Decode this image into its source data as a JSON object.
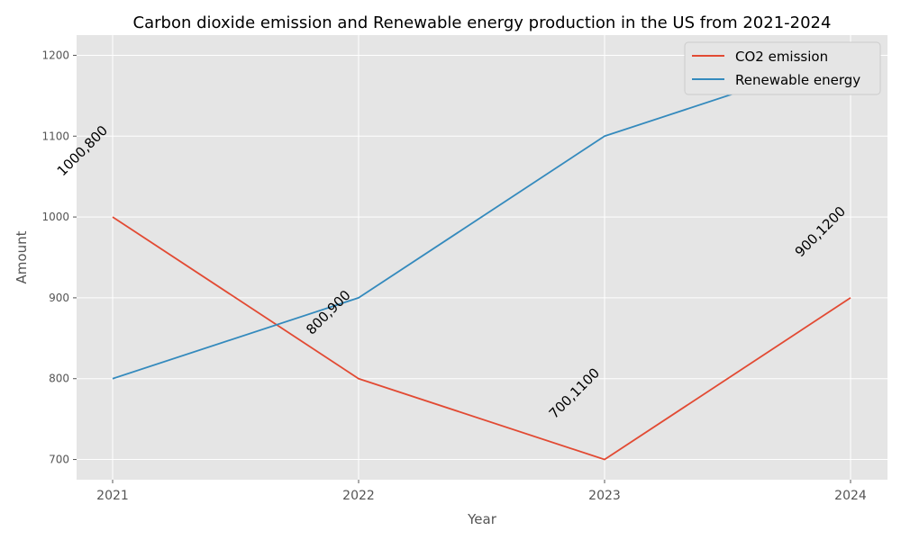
{
  "chart_data": {
    "type": "line",
    "title": "Carbon dioxide emission and Renewable energy production in the US from 2021-2024",
    "xlabel": "Year",
    "ylabel": "Amount",
    "categories": [
      "2021",
      "2022",
      "2023",
      "2024"
    ],
    "y_ticks": [
      700,
      800,
      900,
      1000,
      1100,
      1200
    ],
    "ylim": [
      675,
      1225
    ],
    "grid": true,
    "legend_position": "top-right",
    "series": [
      {
        "name": "CO2 emission",
        "color": "#e24a33",
        "values": [
          1000,
          800,
          700,
          900
        ]
      },
      {
        "name": "Renewable energy",
        "color": "#348abd",
        "values": [
          800,
          900,
          1100,
          1200
        ]
      }
    ],
    "annotations": [
      "1000,800",
      "800,900",
      "700,1100",
      "900,1200"
    ]
  }
}
